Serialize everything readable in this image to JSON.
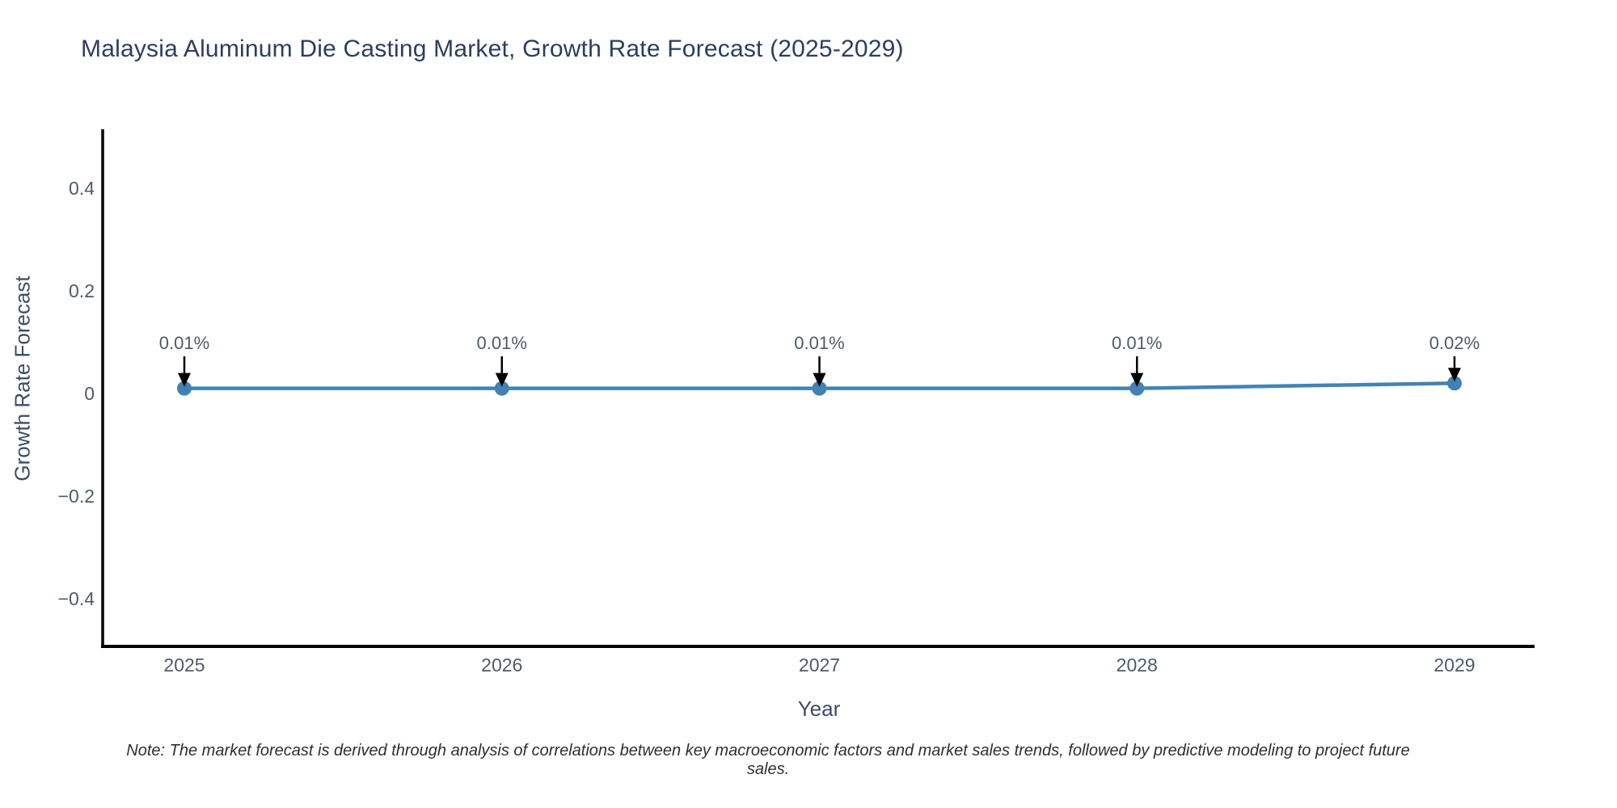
{
  "chart_data": {
    "type": "line",
    "title": "Malaysia Aluminum Die Casting Market, Growth Rate Forecast (2025-2029)",
    "xlabel": "Year",
    "ylabel": "Growth Rate Forecast",
    "x": [
      2025,
      2026,
      2027,
      2028,
      2029
    ],
    "x_tick_labels": [
      "2025",
      "2026",
      "2027",
      "2028",
      "2029"
    ],
    "y": [
      0.01,
      0.01,
      0.01,
      0.01,
      0.02
    ],
    "point_labels": [
      "0.01%",
      "0.01%",
      "0.01%",
      "0.01%",
      "0.02%"
    ],
    "ytick_values": [
      0.4,
      0.2,
      0,
      -0.2,
      -0.4
    ],
    "ytick_labels": [
      "0.4",
      "0.2",
      "0",
      "−0.2",
      "−0.4"
    ],
    "ylim": [
      -0.493,
      0.515
    ],
    "xlim": [
      2025,
      2029
    ],
    "grid": false,
    "legend": false,
    "line_color": "#4383b4",
    "marker_color": "#4181b3",
    "axis_color": "#000000",
    "arrow_color": "#000000",
    "tick_label_color": "#4d5b6b",
    "annotation_color": "#4d5b6b",
    "note": "Note: The market forecast is derived through analysis of correlations between key macroeconomic factors and market sales trends, followed by predictive modeling to project future sales."
  }
}
